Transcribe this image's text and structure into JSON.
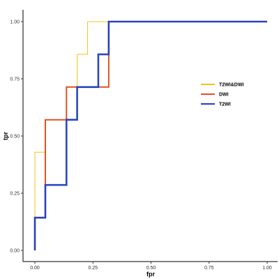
{
  "chart_data": {
    "type": "line",
    "title": "",
    "xlabel": "fpr",
    "ylabel": "tpr",
    "xlim": [
      0,
      1
    ],
    "ylim": [
      0,
      1
    ],
    "x_ticks": [
      "0.00",
      "0.25",
      "0.50",
      "0.75",
      "1.00"
    ],
    "y_ticks": [
      "0.00",
      "0.25",
      "0.50",
      "0.75",
      "1.00"
    ],
    "grid": false,
    "legend_position": "right",
    "series": [
      {
        "name": "T2WI&DWI",
        "color": "#f2c21b",
        "points": [
          [
            0,
            0
          ],
          [
            0,
            0.429
          ],
          [
            0.045,
            0.429
          ],
          [
            0.045,
            0.571
          ],
          [
            0.182,
            0.571
          ],
          [
            0.182,
            0.857
          ],
          [
            0.227,
            0.857
          ],
          [
            0.227,
            1.0
          ],
          [
            1.0,
            1.0
          ]
        ]
      },
      {
        "name": "DWI",
        "color": "#e0521f",
        "points": [
          [
            0,
            0
          ],
          [
            0,
            0.143
          ],
          [
            0.045,
            0.143
          ],
          [
            0.045,
            0.571
          ],
          [
            0.136,
            0.571
          ],
          [
            0.136,
            0.714
          ],
          [
            0.318,
            0.714
          ],
          [
            0.318,
            1.0
          ],
          [
            1.0,
            1.0
          ]
        ]
      },
      {
        "name": "T2WI",
        "color": "#1f3fbf",
        "points": [
          [
            0,
            0
          ],
          [
            0,
            0.143
          ],
          [
            0.045,
            0.143
          ],
          [
            0.045,
            0.286
          ],
          [
            0.136,
            0.286
          ],
          [
            0.136,
            0.571
          ],
          [
            0.182,
            0.571
          ],
          [
            0.182,
            0.714
          ],
          [
            0.273,
            0.714
          ],
          [
            0.273,
            0.857
          ],
          [
            0.318,
            0.857
          ],
          [
            0.318,
            1.0
          ],
          [
            1.0,
            1.0
          ]
        ]
      }
    ]
  }
}
